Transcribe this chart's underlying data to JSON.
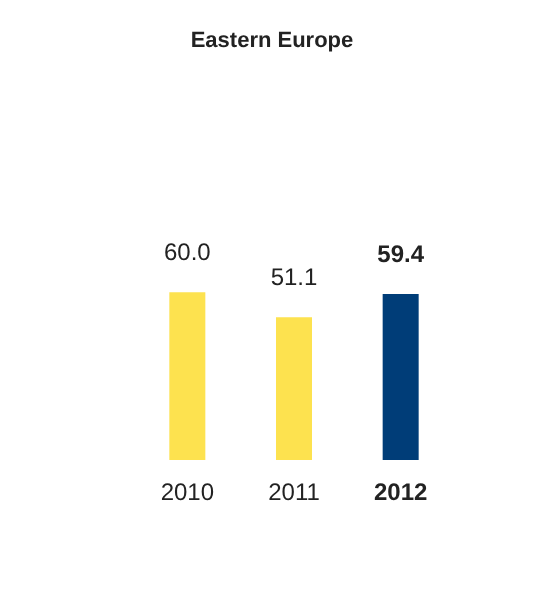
{
  "chart_data": {
    "type": "bar",
    "title": "Eastern Europe",
    "categories": [
      "2010",
      "2011",
      "2012"
    ],
    "values": [
      60.0,
      51.1,
      59.4
    ],
    "colors": [
      "#fde24f",
      "#fde24f",
      "#003d78"
    ],
    "value_labels": [
      "60.0",
      "51.1",
      "59.4"
    ]
  }
}
